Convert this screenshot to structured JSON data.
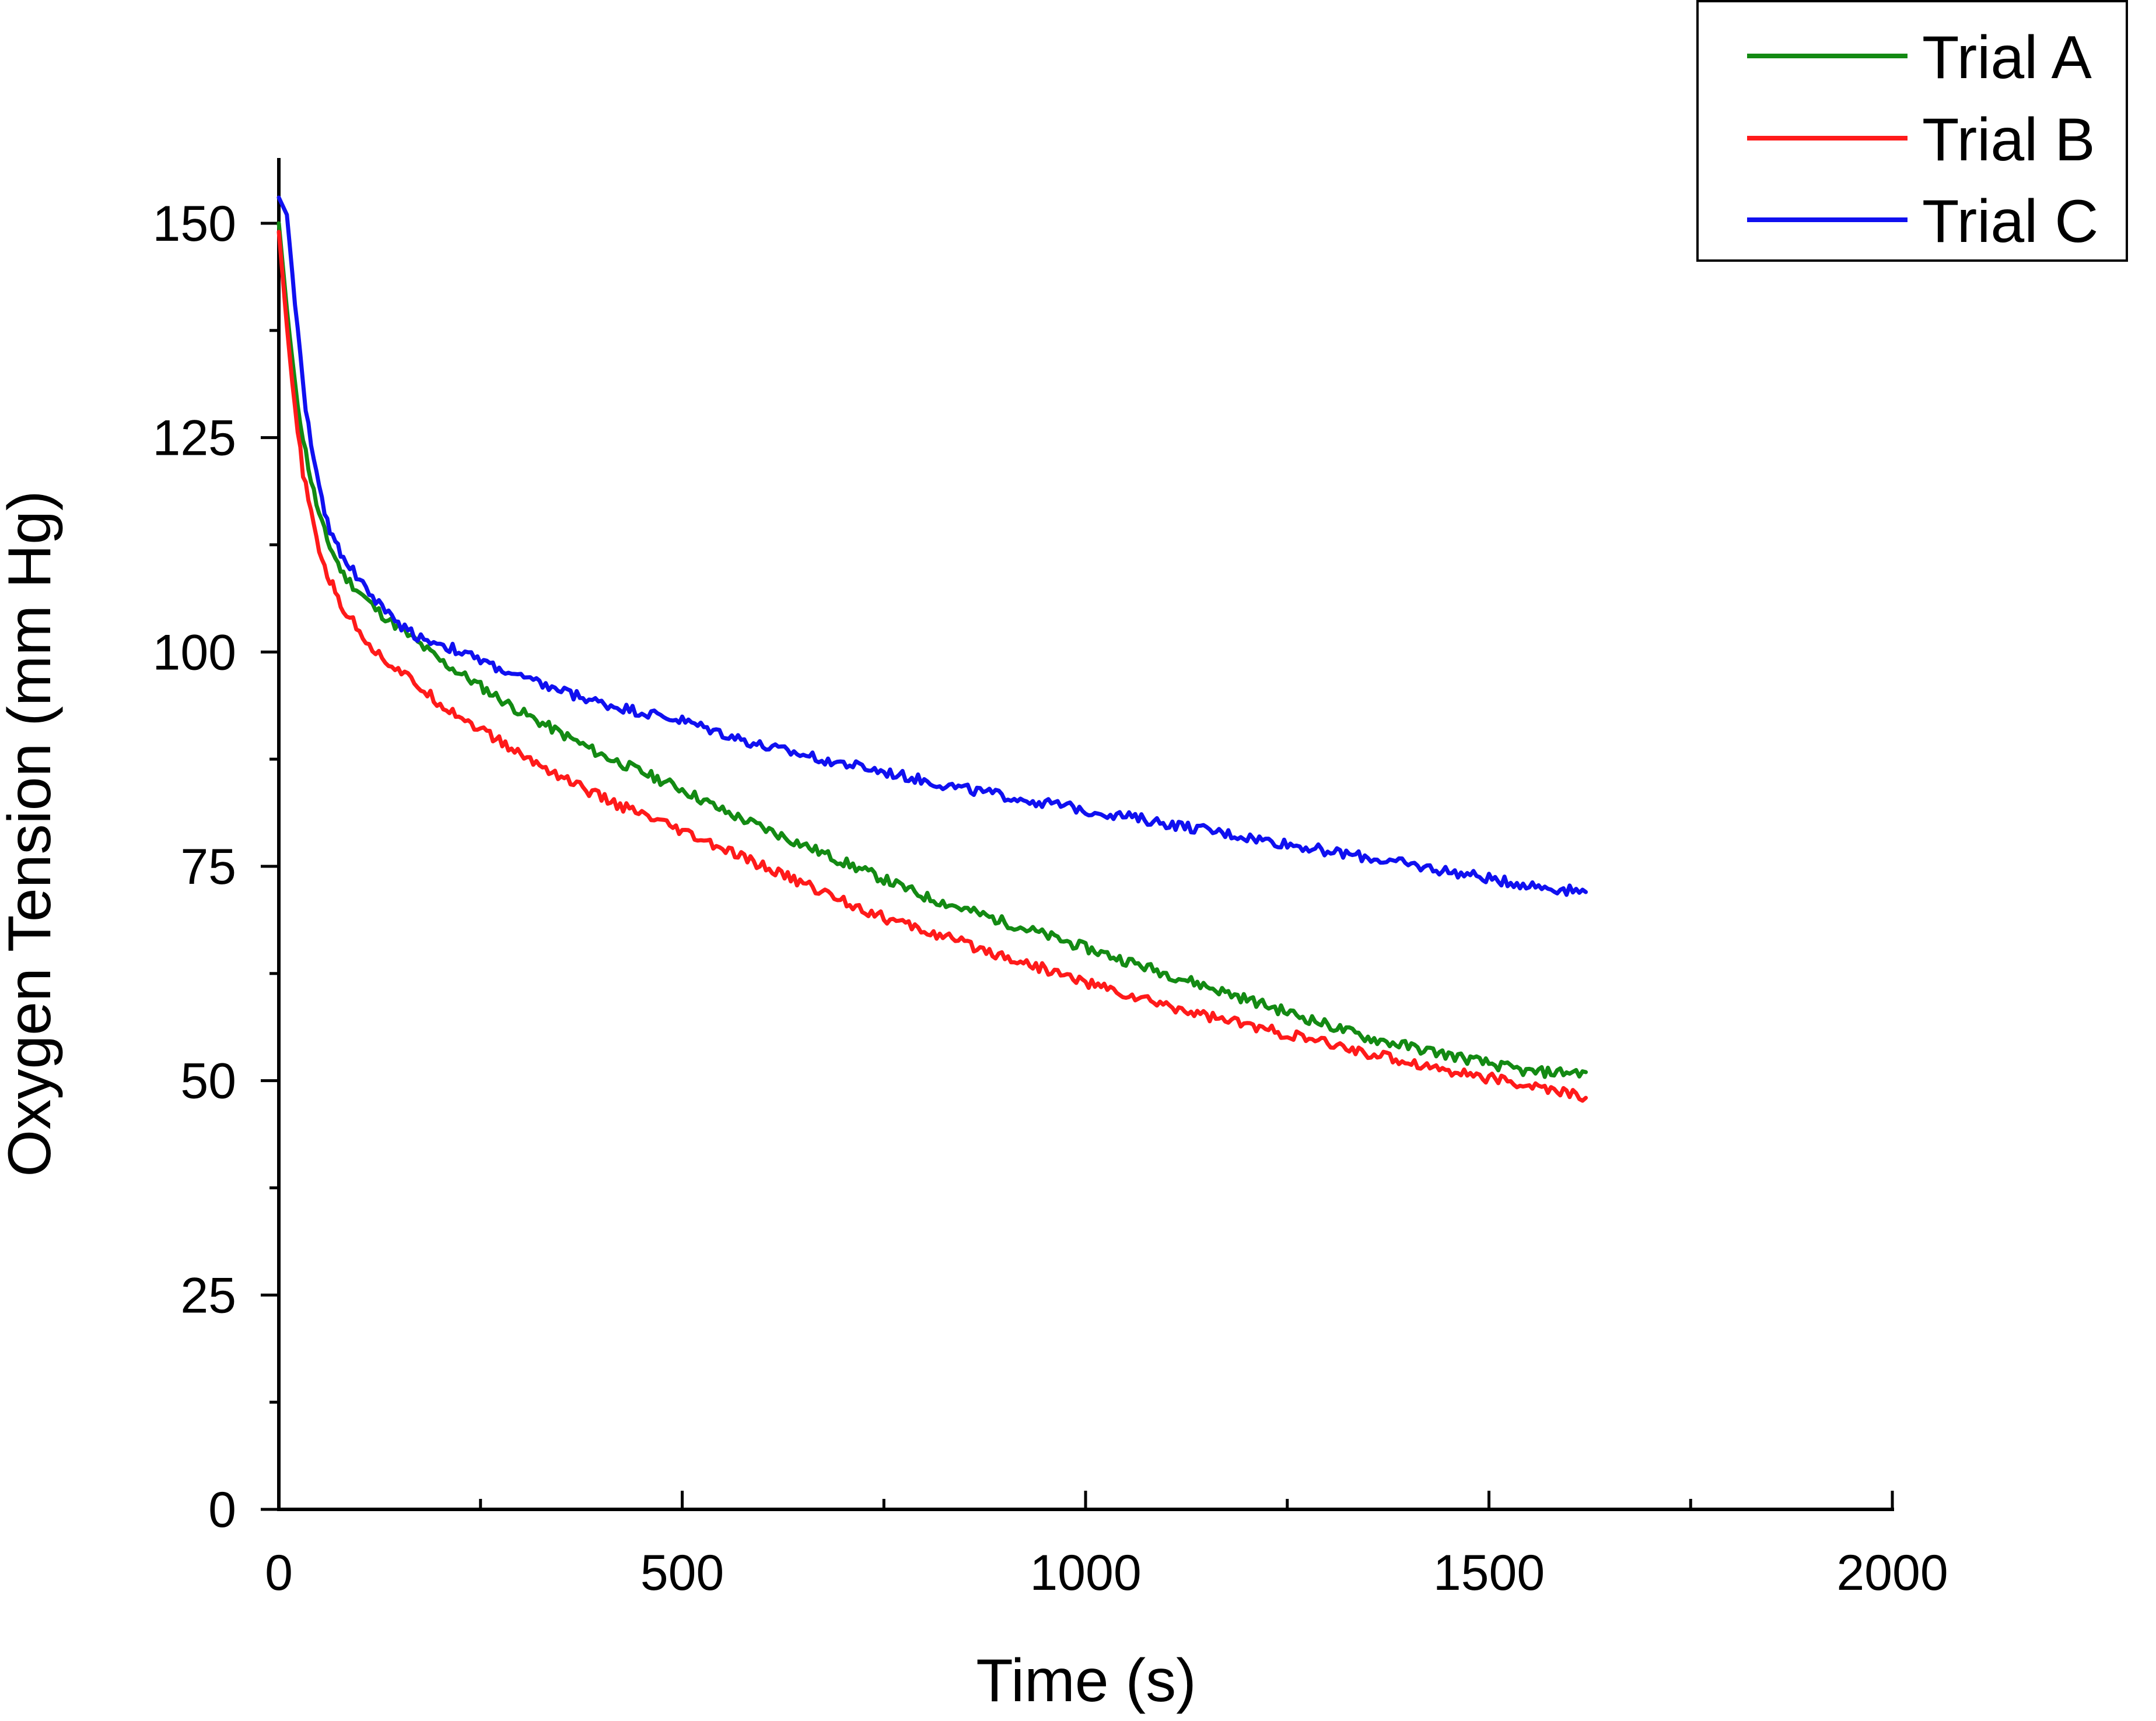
{
  "chart_data": {
    "type": "line",
    "title": "",
    "xlabel": "Time (s)",
    "ylabel": "Oxygen Tension (mm Hg)",
    "xlim": [
      0,
      2000
    ],
    "ylim": [
      0,
      150
    ],
    "x_ticks": [
      0,
      500,
      1000,
      1500,
      2000
    ],
    "x_tick_labels": [
      "0",
      "500",
      "1000",
      "1500",
      "2000"
    ],
    "y_ticks": [
      0,
      25,
      50,
      75,
      100,
      125,
      150
    ],
    "y_tick_labels": [
      "0",
      "25",
      "50",
      "75",
      "100",
      "125",
      "150"
    ],
    "grid": false,
    "legend_position": "top-right",
    "x": [
      0,
      10,
      20,
      30,
      40,
      50,
      60,
      70,
      80,
      100,
      120,
      140,
      160,
      180,
      200,
      250,
      300,
      350,
      400,
      450,
      500,
      550,
      600,
      650,
      700,
      750,
      800,
      850,
      900,
      950,
      1000,
      1050,
      1100,
      1150,
      1200,
      1250,
      1300,
      1350,
      1400,
      1450,
      1500,
      1550,
      1600,
      1620
    ],
    "series": [
      {
        "name": "Trial A",
        "color": "#138A13",
        "values": [
          150,
          140,
          131,
          125,
          120,
          116,
          113,
          111,
          109,
          107,
          105,
          103.5,
          102,
          100.5,
          99,
          96,
          93,
          90.5,
          88,
          86,
          84,
          81.5,
          79.5,
          77.5,
          75.5,
          73.5,
          71.5,
          70,
          68.5,
          67,
          65.5,
          64,
          62.5,
          61,
          59.5,
          58,
          56.5,
          55,
          54,
          53,
          52,
          51,
          51,
          51
        ]
      },
      {
        "name": "Trial B",
        "color": "#FF1A1A",
        "values": [
          149,
          138,
          128,
          121,
          116,
          112,
          109,
          107,
          105,
          102.5,
          100,
          98.5,
          97,
          95.5,
          94,
          91,
          88,
          85.5,
          83,
          81,
          79,
          77,
          75,
          73,
          71,
          69,
          67.5,
          66,
          64.5,
          63,
          61.5,
          60,
          58.8,
          57.6,
          56.5,
          55.4,
          54.3,
          53.2,
          52.2,
          51.2,
          50.3,
          49.4,
          48.5,
          48
        ]
      },
      {
        "name": "Trial C",
        "color": "#1010F0",
        "values": [
          153,
          151,
          141,
          131,
          124,
          119,
          115,
          113,
          111,
          108.5,
          106,
          104,
          102.5,
          101.5,
          101,
          99,
          97,
          95.5,
          94,
          93,
          92,
          90.5,
          89,
          88,
          87,
          86,
          85,
          84,
          83.2,
          82.4,
          81.6,
          80.8,
          80,
          79.2,
          78.4,
          77.6,
          76.8,
          76,
          75.2,
          74.4,
          73.6,
          72.8,
          72.2,
          72
        ]
      }
    ]
  }
}
